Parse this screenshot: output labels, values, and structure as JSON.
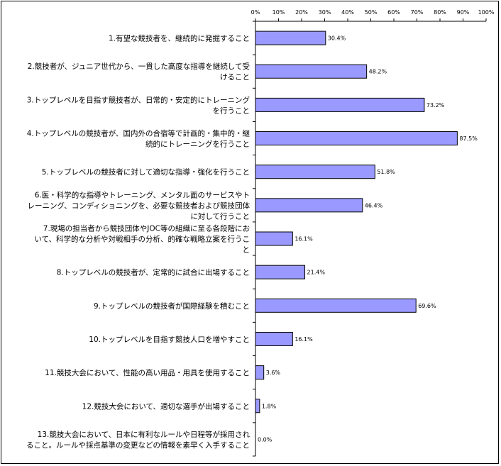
{
  "chart_data": {
    "type": "bar",
    "orientation": "horizontal",
    "title": "",
    "xlabel": "",
    "ylabel": "",
    "xlim": [
      0,
      100
    ],
    "x_ticks": [
      "0%",
      "10%",
      "20%",
      "30%",
      "40%",
      "50%",
      "60%",
      "70%",
      "80%",
      "90%",
      "100%"
    ],
    "grid": false,
    "bar_color": "#9999ff",
    "bar_border_color": "#000000",
    "categories": [
      [
        "1.有望な競技者を、継続的に発掘すること"
      ],
      [
        "2.競技者が、ジュニア世代から、一貫した高度な指導を継続して受",
        "けること"
      ],
      [
        "3.トップレベルを目指す競技者が、日常的・安定的にトレーニング",
        "を行うこと"
      ],
      [
        "4.トップレベルの競技者が、国内外の合宿等で計画的・集中的・継",
        "続的にトレーニングを行うこと"
      ],
      [
        "5.トップレベルの競技者に対して適切な指導・強化を行うこと"
      ],
      [
        "6.医・科学的な指導やトレーニング、メンタル面のサービスやト",
        "レーニング、コンディショニングを、必要な競技者および競技団体",
        "に対して行うこと"
      ],
      [
        "7.現場の担当者から競技団体やJOC等の組織に至る各段階にお",
        "いて、科学的な分析や対戦相手の分析、的確な戦略立案を行うこ",
        "と"
      ],
      [
        "8.トップレベルの競技者が、定常的に試合に出場すること"
      ],
      [
        "9.トップレベルの競技者が国際経験を積むこと"
      ],
      [
        "10.トップレベルを目指す競技人口を増やすこと"
      ],
      [
        "11.競技大会において、性能の高い用品・用具を使用すること"
      ],
      [
        "12.競技大会において、適切な選手が出場すること"
      ],
      [
        "13.競技大会において、日本に有利なルールや日程等が採用され",
        "ること。ルールや採点基準の変更などの情報を素早く入手すること"
      ]
    ],
    "values": [
      30.4,
      48.2,
      73.2,
      87.5,
      51.8,
      46.4,
      16.1,
      21.4,
      69.6,
      16.1,
      3.6,
      1.8,
      0.0
    ],
    "value_labels": [
      "30.4%",
      "48.2%",
      "73.2%",
      "87.5%",
      "51.8%",
      "46.4%",
      "16.1%",
      "21.4%",
      "69.6%",
      "16.1%",
      "3.6%",
      "1.8%",
      "0.0%"
    ]
  }
}
